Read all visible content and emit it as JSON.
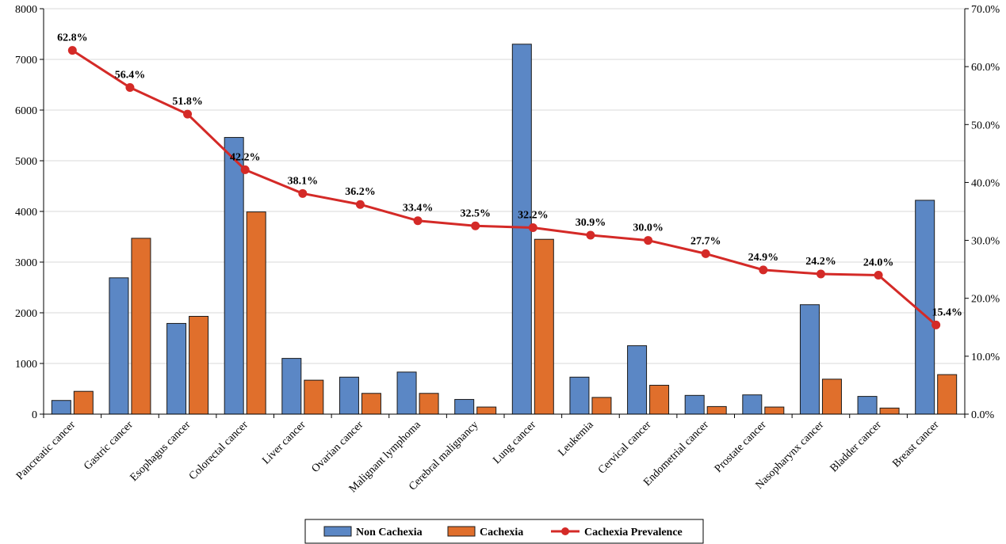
{
  "chart_data": {
    "type": "bar",
    "categories": [
      "Pancreatic cancer",
      "Gastric cancer",
      "Esophagus cancer",
      "Colorectal cancer",
      "Liver cancer",
      "Ovarian cancer",
      "Malignant lymphoma",
      "Cerebral malignancy",
      "Lung cancer",
      "Leukemia",
      "Cervical cancer",
      "Endometrial cancer",
      "Prostate cancer",
      "Nasopharynx cancer",
      "Bladder cancer",
      "Breast cancer"
    ],
    "series": [
      {
        "name": "Non Cachexia",
        "kind": "bar",
        "axis": "left",
        "color": "#5B87C5",
        "values": [
          270,
          2690,
          1790,
          5460,
          1100,
          730,
          830,
          290,
          7300,
          730,
          1350,
          370,
          380,
          2160,
          350,
          4220
        ]
      },
      {
        "name": "Cachexia",
        "kind": "bar",
        "axis": "left",
        "color": "#E06F2C",
        "values": [
          450,
          3470,
          1930,
          3990,
          670,
          410,
          410,
          140,
          3450,
          330,
          570,
          150,
          140,
          690,
          120,
          780
        ]
      },
      {
        "name": "Cachexia Prevalence",
        "kind": "line",
        "axis": "right",
        "color": "#D42A27",
        "values": [
          62.8,
          56.4,
          51.8,
          42.2,
          38.1,
          36.2,
          33.4,
          32.5,
          32.2,
          30.9,
          30.0,
          27.7,
          24.9,
          24.2,
          24.0,
          15.4
        ],
        "labels": [
          "62.8%",
          "56.4%",
          "51.8%",
          "42.2%",
          "38.1%",
          "36.2%",
          "33.4%",
          "32.5%",
          "32.2%",
          "30.9%",
          "30.0%",
          "27.7%",
          "24.9%",
          "24.2%",
          "24.0%",
          "15.4%"
        ]
      }
    ],
    "y_left": {
      "ylim": [
        0,
        8000
      ],
      "ticks": [
        0,
        1000,
        2000,
        3000,
        4000,
        5000,
        6000,
        7000,
        8000
      ],
      "tick_labels": [
        "0",
        "1000",
        "2000",
        "3000",
        "4000",
        "5000",
        "6000",
        "7000",
        "8000"
      ]
    },
    "y_right": {
      "ylim": [
        0,
        70
      ],
      "ticks": [
        0,
        10,
        20,
        30,
        40,
        50,
        60,
        70
      ],
      "tick_labels": [
        "0.0%",
        "10.0%",
        "20.0%",
        "30.0%",
        "40.0%",
        "50.0%",
        "60.0%",
        "70.0%"
      ]
    },
    "grid": true,
    "legend": "bottom-center",
    "title": "",
    "xlabel": "",
    "ylabel": ""
  }
}
